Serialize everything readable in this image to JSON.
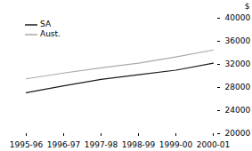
{
  "chart_data": {
    "type": "line",
    "categories": [
      "1995-96",
      "1996-97",
      "1997-98",
      "1998-99",
      "1999-00",
      "2000-01"
    ],
    "series": [
      {
        "name": "SA",
        "color": "#1a1a1a",
        "values": [
          27100,
          28300,
          29400,
          30200,
          31000,
          32200
        ]
      },
      {
        "name": "Aust.",
        "color": "#aaaaaa",
        "values": [
          29500,
          30500,
          31400,
          32200,
          33300,
          34500
        ]
      }
    ],
    "y_label": "$",
    "ylim": [
      20000,
      40000
    ],
    "yticks": [
      20000,
      24000,
      28000,
      32000,
      36000,
      40000
    ],
    "grid": false,
    "legend": "upper left"
  }
}
